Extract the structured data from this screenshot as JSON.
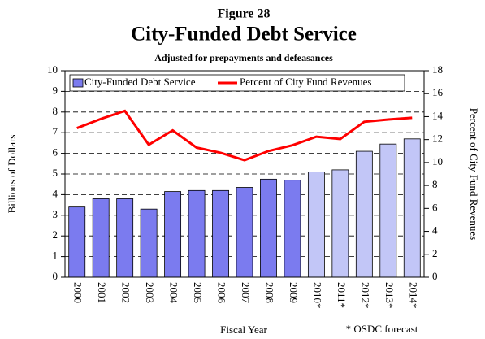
{
  "chart_data": {
    "type": "bar_line",
    "figure_label": "Figure 28",
    "title": "City-Funded Debt Service",
    "subtitle": "Adjusted for prepayments and defeasances",
    "xlabel": "Fiscal Year",
    "ylabel": "Billions of Dollars",
    "y2label": "Percent of City Fund Revenues",
    "annotation": "* OSDC forecast",
    "categories": [
      "2000",
      "2001",
      "2002",
      "2003",
      "2004",
      "2005",
      "2006",
      "2007",
      "2008",
      "2009",
      "2010*",
      "2011*",
      "2012*",
      "2013*",
      "2014*"
    ],
    "series": [
      {
        "name": "City-Funded Debt Service",
        "type": "bar",
        "color": "#7b7bef",
        "colors": [
          "#7b7bef",
          "#7b7bef",
          "#7b7bef",
          "#7b7bef",
          "#7b7bef",
          "#7b7bef",
          "#7b7bef",
          "#7b7bef",
          "#7b7bef",
          "#7b7bef",
          "#c2c6f7",
          "#c2c6f7",
          "#c2c6f7",
          "#c2c6f7",
          "#c2c6f7"
        ],
        "values": [
          3.4,
          3.8,
          3.8,
          3.3,
          4.15,
          4.2,
          4.2,
          4.35,
          4.75,
          4.7,
          5.1,
          5.2,
          6.1,
          6.45,
          6.7
        ]
      },
      {
        "name": "Percent of City Fund Revenues",
        "type": "line",
        "axis": "y2",
        "color": "#ff0000",
        "values": [
          13.0,
          13.8,
          14.5,
          11.55,
          12.8,
          11.3,
          10.85,
          10.2,
          11.0,
          11.5,
          12.25,
          12.05,
          13.55,
          13.75,
          13.9
        ]
      }
    ],
    "ylim": [
      0,
      10
    ],
    "yticks": [
      0,
      1,
      2,
      3,
      4,
      5,
      6,
      7,
      8,
      9,
      10
    ],
    "y2lim": [
      0,
      18
    ],
    "y2ticks": [
      0,
      2,
      4,
      6,
      8,
      10,
      12,
      14,
      16,
      18
    ],
    "grid": true,
    "legend": "top"
  }
}
